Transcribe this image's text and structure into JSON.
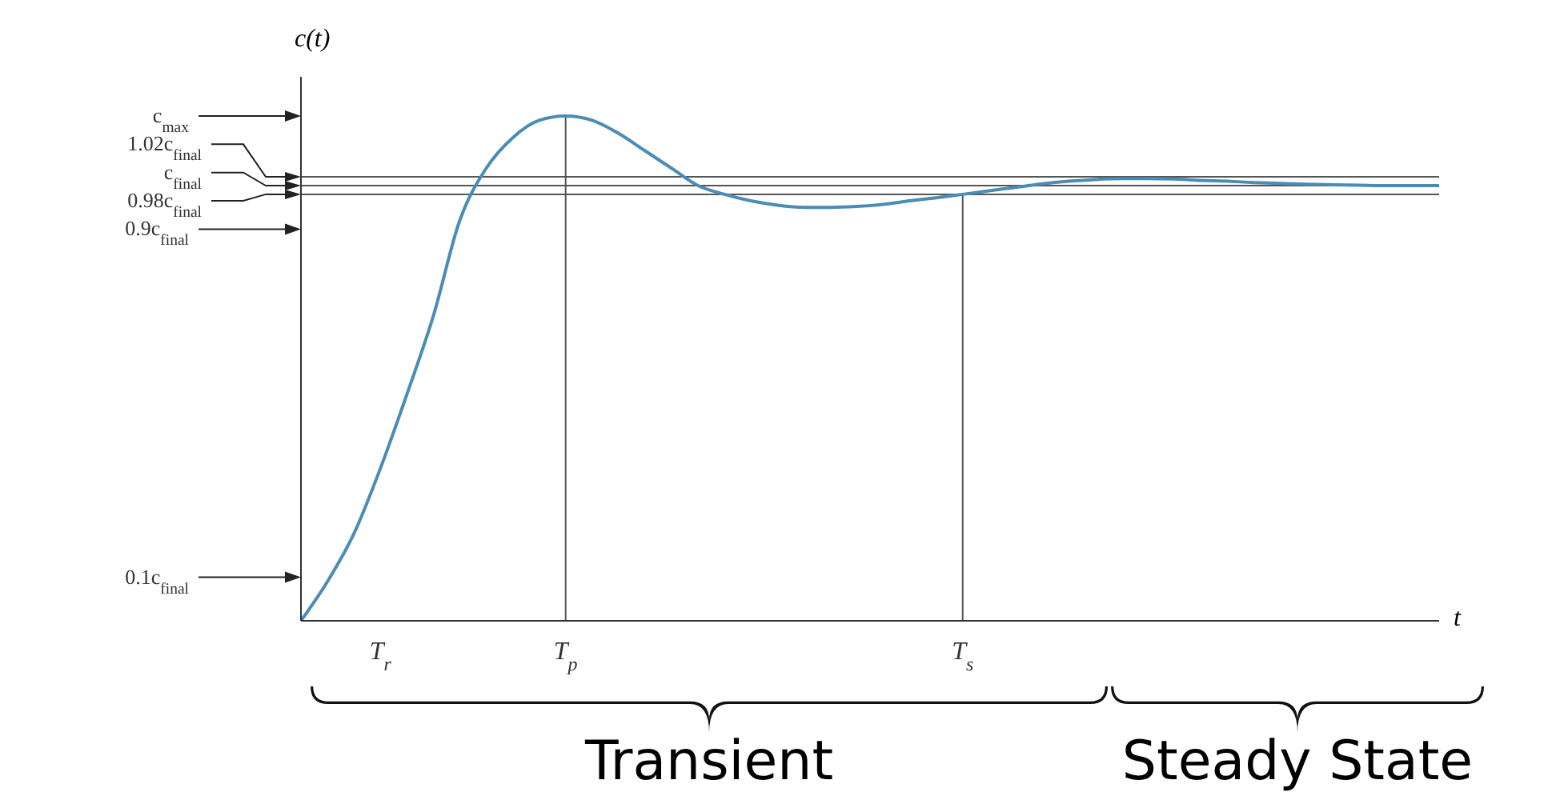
{
  "chart_data": {
    "type": "line",
    "xlabel": "t",
    "ylabel": "c(t)",
    "categories": [
      null,
      null,
      null,
      "T$_{r}$",
      null,
      null,
      null,
      null,
      null,
      null,
      "T$_{p}$",
      null,
      null,
      null,
      null,
      null,
      null,
      null,
      null,
      null,
      null,
      null,
      null,
      null,
      null,
      "T$_{s}$",
      null,
      null,
      null,
      null,
      null,
      null,
      null,
      null,
      null,
      null,
      null,
      null,
      null,
      null,
      null,
      null,
      null,
      null
    ],
    "series": [
      {
        "color": "#4a8cb5",
        "values": [
          0,
          0.09,
          0.2,
          0.35,
          0.52,
          0.7,
          0.92,
          1.04,
          1.11,
          1.15,
          1.16,
          1.15,
          1.12,
          1.08,
          1.04,
          1.0,
          0.98,
          0.965,
          0.955,
          0.95,
          0.95,
          0.952,
          0.957,
          0.965,
          0.972,
          0.98,
          0.988,
          0.996,
          1.004,
          1.01,
          1.014,
          1.016,
          1.016,
          1.015,
          1.012,
          1.01,
          1.007,
          1.005,
          1.003,
          1.002,
          1.001,
          1.0,
          1.0,
          1.0
        ]
      }
    ],
    "ylim": [
      0,
      1.25
    ],
    "yticks": [
      {
        "value": 0.1,
        "label": "0.1c$_{final}$"
      },
      {
        "value": 0.9,
        "label": "0.9c$_{final}$"
      },
      {
        "value": 1.16,
        "label": "c$_{max}$"
      }
    ],
    "ref_lines": [
      {
        "axis": "y",
        "value": 1.02,
        "label": "1.02c$_{final}$",
        "color": "#555555"
      },
      {
        "axis": "y",
        "value": 1,
        "label": "c$_{final}$",
        "color": "#555555"
      },
      {
        "axis": "y",
        "value": 0.98,
        "label": "0.98c$_{final}$",
        "color": "#555555"
      },
      {
        "axis": "x",
        "value": "T$_{p}$",
        "color": "#555555"
      },
      {
        "axis": "x",
        "value": "T$_{s}$",
        "color": "#555555"
      }
    ],
    "annotations": [
      "Transient",
      "Steady State"
    ],
    "grid": false,
    "marker": "none",
    "line_style": "solid"
  }
}
